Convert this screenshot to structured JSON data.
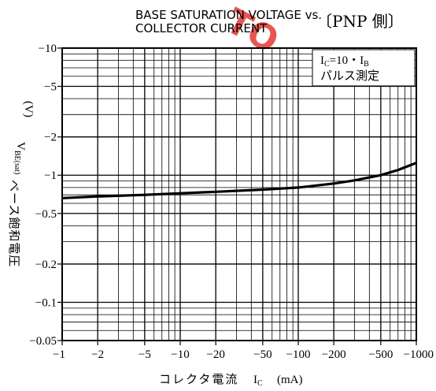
{
  "chart_data": {
    "type": "line",
    "title_line1": "BASE SATURATION VOLTAGE vs.",
    "title_line2": "COLLECTOR CURRENT",
    "side_title": "〔PNP 側〕",
    "xlabel": "コレクタ電流",
    "xsymbol_main": "I",
    "xsymbol_sub": "C",
    "xunit": "(mA)",
    "ylabel": "ベース飽和電圧",
    "ysymbol_main": "V",
    "ysymbol_sub": "BE(sat)",
    "yunit": "(V)",
    "x_scale": "log",
    "y_scale": "log",
    "xlim": [
      1,
      1000
    ],
    "ylim": [
      0.05,
      10
    ],
    "grid": true,
    "x_ticks": [
      {
        "value": 1,
        "label": "−1"
      },
      {
        "value": 2,
        "label": "−2"
      },
      {
        "value": 5,
        "label": "−5"
      },
      {
        "value": 10,
        "label": "−10"
      },
      {
        "value": 20,
        "label": "−20"
      },
      {
        "value": 50,
        "label": "−50"
      },
      {
        "value": 100,
        "label": "−100"
      },
      {
        "value": 200,
        "label": "−200"
      },
      {
        "value": 500,
        "label": "−500"
      },
      {
        "value": 1000,
        "label": "−1000"
      }
    ],
    "y_ticks": [
      {
        "value": 10,
        "label": "−10"
      },
      {
        "value": 5,
        "label": "−5"
      },
      {
        "value": 2,
        "label": "−2"
      },
      {
        "value": 1,
        "label": "−1"
      },
      {
        "value": 0.5,
        "label": "−0.5"
      },
      {
        "value": 0.2,
        "label": "−0.2"
      },
      {
        "value": 0.1,
        "label": "−0.1"
      },
      {
        "value": 0.05,
        "label": "−0.05"
      }
    ],
    "legend_position": "top-right",
    "annotation": {
      "line1_main": "I",
      "line1_sub1": "C",
      "line1_mid": "=10・I",
      "line1_sub2": "B",
      "line2": "パルス測定"
    },
    "series": [
      {
        "x": [
          1,
          2,
          5,
          10,
          20,
          50,
          100,
          200,
          300,
          500,
          700,
          1000
        ],
        "y": [
          0.66,
          0.68,
          0.7,
          0.72,
          0.74,
          0.77,
          0.8,
          0.86,
          0.91,
          1.0,
          1.1,
          1.25
        ]
      }
    ],
    "watermark": "TO"
  }
}
